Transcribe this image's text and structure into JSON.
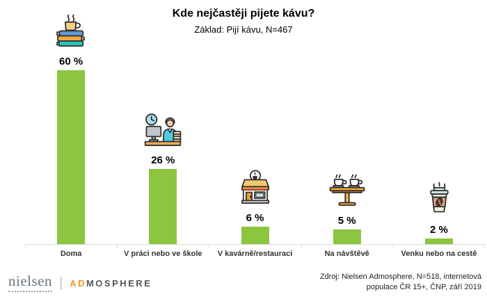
{
  "header": {
    "title": "Kde nejčastěji pijete kávu?",
    "subtitle": "Základ: Pijí kávu, N=467"
  },
  "chart_data": {
    "type": "bar",
    "title": "Kde nejčastěji pijete kávu?",
    "subtitle": "Základ: Pijí kávu, N=467",
    "categories": [
      "Doma",
      "V práci nebo ve škole",
      "V kavárně/restauraci",
      "Na návštěvě",
      "Venku nebo na cestě"
    ],
    "values": [
      60,
      26,
      6,
      5,
      2
    ],
    "value_labels": [
      "60 %",
      "26 %",
      "6 %",
      "5 %",
      "2 %"
    ],
    "icons": [
      "coffee-cup-on-books-icon",
      "person-at-desk-with-clock-icon",
      "cafe-storefront-icon",
      "table-with-two-cups-icon",
      "takeaway-coffee-cup-icon"
    ],
    "xlabel": "",
    "ylabel": "",
    "ylim": [
      0,
      60
    ],
    "grid": false,
    "legend": "none",
    "bar_color": "#8CC540",
    "axis_color": "#D9D9D9"
  },
  "footer": {
    "logo": {
      "nielsen": "nielsen",
      "separator": "|",
      "admosphere_ad": "AD",
      "admosphere_rest": "MOSPHERE"
    },
    "source_line1": "Zdroj: Nielsen Admosphere, N=518, internetová",
    "source_line2": "populace ČR 15+, ČNP, září 2019"
  },
  "colors": {
    "bar_green": "#8CC540",
    "axis_gray": "#D9D9D9",
    "logo_orange": "#F7941E",
    "logo_gray": "#54565A"
  }
}
